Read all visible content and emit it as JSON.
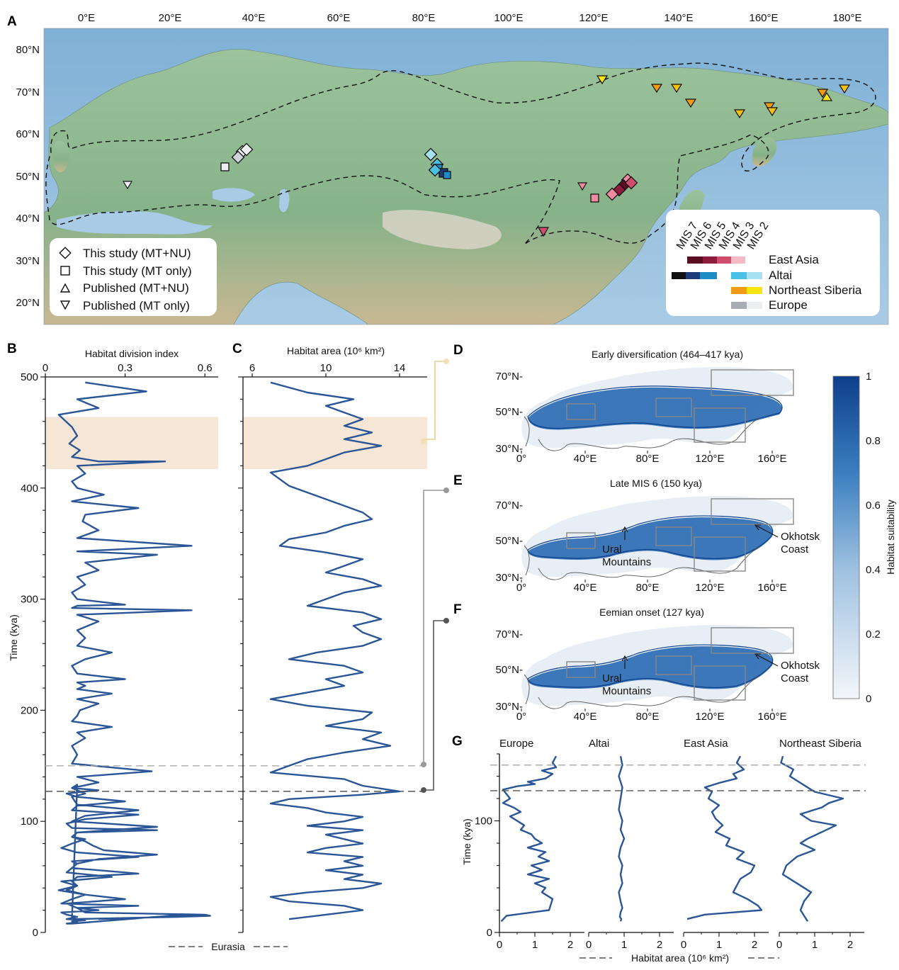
{
  "panels": {
    "A": "A",
    "B": "B",
    "C": "C",
    "D": "D",
    "E": "E",
    "F": "F",
    "G": "G"
  },
  "colors": {
    "curve": "#2a5596",
    "sea_light": "#b8d4ea",
    "land_green": "#8fb596",
    "band": "#f6e6d6",
    "band_connector": "#e8cf8e",
    "mis6_line": "#aaaaaa",
    "eemian_line": "#555555",
    "east_asia": [
      "#5a0e22",
      "#8c1d3c",
      "#cf4c6c",
      "#f08aa0",
      "#f6b9c6"
    ],
    "altai": [
      "#111111",
      "#1f3a78",
      "#1c8cc6",
      "#4cc0e4",
      "#a8e2f2"
    ],
    "ne_siberia": [
      "#f39c12",
      "#f7c20e",
      "#fce40e"
    ],
    "europe": [
      "#a9adb3",
      "#d0d4d8",
      "#eceef0"
    ]
  },
  "map_A": {
    "lon_ticks": [
      "0°E",
      "20°E",
      "40°E",
      "60°E",
      "80°E",
      "100°E",
      "120°E",
      "140°E",
      "160°E",
      "180°E"
    ],
    "lat_ticks": [
      "80°N",
      "70°N",
      "60°N",
      "50°N",
      "40°N",
      "30°N",
      "20°N"
    ],
    "legend_symbols": [
      {
        "shape": "diamond",
        "label": "This study (MT+NU)"
      },
      {
        "shape": "square",
        "label": "This study (MT only)"
      },
      {
        "shape": "triangle-up",
        "label": "Published (MT+NU)"
      },
      {
        "shape": "triangle-down",
        "label": "Published (MT only)"
      }
    ],
    "mis_labels": [
      "MIS 7",
      "MIS 6",
      "MIS 5",
      "MIS 4",
      "MIS 3",
      "MIS 2"
    ],
    "regions": [
      "East Asia",
      "Altai",
      "Northeast Siberia",
      "Europe"
    ]
  },
  "panel_D": {
    "title": "Early diversification (464–417 kya)"
  },
  "panel_E": {
    "title": "Late MIS 6 (150 kya)",
    "annotations": [
      "Ural\nMountains",
      "Okhotsk\nCoast"
    ]
  },
  "panel_F": {
    "title": "Eemian onset (127 kya)",
    "annotations": [
      "Ural\nMountains",
      "Okhotsk\nCoast"
    ]
  },
  "suit_maps": {
    "lat_ticks": [
      "70°N-",
      "50°N-",
      "30°N-"
    ],
    "lon_ticks": [
      "0°",
      "40°E",
      "80°E",
      "120°E",
      "160°E"
    ]
  },
  "colorbar": {
    "label": "Habitat suitability",
    "ticks": [
      "0",
      "0.2",
      "0.4",
      "0.6",
      "0.8",
      "1"
    ]
  },
  "chart_data": [
    {
      "panel": "B",
      "type": "line",
      "xlabel": "Habitat division index",
      "ylabel": "Time (kya)",
      "xlim": [
        0,
        0.65
      ],
      "xticks": [
        "0",
        "0.3",
        "0.6"
      ],
      "ylim": [
        0,
        500
      ],
      "yticks": [
        "0",
        "100",
        "200",
        "300",
        "400",
        "500"
      ],
      "highlight_band": [
        417,
        464
      ],
      "reference_lines": [
        150,
        127
      ],
      "x": [
        0.15,
        0.38,
        0.12,
        0.2,
        0.05,
        0.1,
        0.12,
        0.09,
        0.13,
        0.1,
        0.2,
        0.45,
        0.12,
        0.15,
        0.1,
        0.12,
        0.22,
        0.1,
        0.35,
        0.15,
        0.14,
        0.2,
        0.12,
        0.55,
        0.12,
        0.42,
        0.15,
        0.2,
        0.12,
        0.15,
        0.1,
        0.12,
        0.3,
        0.12,
        0.1,
        0.55,
        0.12,
        0.2,
        0.12,
        0.15,
        0.12,
        0.25,
        0.15,
        0.1,
        0.12,
        0.3,
        0.12,
        0.15,
        0.12,
        0.25,
        0.12,
        0.2,
        0.13,
        0.12,
        0.1,
        0.25,
        0.12,
        0.15,
        0.1,
        0.12,
        0.1,
        0.4,
        0.12,
        0.2,
        0.1,
        0.15,
        0.1,
        0.12,
        0.35,
        0.15,
        0.1,
        0.42,
        0.12,
        0.1,
        0.15,
        0.18,
        0.22,
        0.42,
        0.2,
        0.12,
        0.1,
        0.35,
        0.12,
        0.1,
        0.12,
        0.05,
        0.15,
        0.3,
        0.08,
        0.12,
        0.15,
        0.6,
        0.62,
        0.5,
        0.1,
        0.12,
        0.1,
        0.2,
        0.15,
        0.08,
        0.12,
        0.3,
        0.12,
        0.1,
        0.35,
        0.15,
        0.08,
        0.1,
        0.42,
        0.12,
        0.1,
        0.15,
        0.1,
        0.06,
        0.12,
        0.35,
        0.1,
        0.12,
        0.1,
        0.08,
        0.25,
        0.06,
        0.12,
        0.08,
        0.15,
        0.1,
        0.06,
        0.35,
        0.12,
        0.2,
        0.06,
        0.08,
        0.12,
        0.1,
        0.08,
        0.15,
        0.1,
        0.12,
        0.08,
        0.1,
        0.52,
        0.6,
        0.2
      ],
      "y": [
        495,
        487,
        480,
        472,
        466,
        455,
        447,
        440,
        434,
        428,
        424,
        424,
        420,
        413,
        406,
        400,
        394,
        388,
        382,
        376,
        370,
        362,
        355,
        348,
        343,
        340,
        333,
        326,
        320,
        313,
        306,
        300,
        295,
        294,
        292,
        290,
        286,
        280,
        272,
        265,
        258,
        252,
        246,
        240,
        233,
        228,
        225,
        222,
        219,
        215,
        210,
        206,
        200,
        195,
        190,
        185,
        180,
        175,
        168,
        160,
        152,
        145,
        140,
        135,
        130,
        125,
        122,
        115,
        110,
        105,
        100,
        95,
        90,
        86,
        82,
        78,
        74,
        70,
        66,
        62,
        58,
        53,
        50,
        46,
        42,
        38,
        34,
        30,
        26,
        22,
        18,
        16,
        15,
        14,
        12,
        133,
        130,
        128,
        127,
        125,
        122,
        118,
        114,
        110,
        106,
        102,
        98,
        94,
        92,
        90,
        86,
        84,
        80,
        76,
        72,
        68,
        64,
        62,
        58,
        54,
        50,
        46,
        42,
        38,
        34,
        30,
        26,
        24,
        22,
        20,
        18,
        16,
        14,
        13,
        12,
        11,
        10,
        9,
        8,
        8,
        16,
        15,
        12
      ],
      "series": []
    },
    {
      "panel": "C",
      "type": "line",
      "xlabel": "Habitat area (10⁶ km²)",
      "xlim": [
        5.5,
        15.5
      ],
      "xticks": [
        "6",
        "10",
        "14"
      ],
      "ylim": [
        0,
        500
      ],
      "highlight_band": [
        417,
        464
      ],
      "reference_lines": [
        150,
        127
      ],
      "x": [
        7,
        9,
        11.5,
        10,
        11,
        12,
        11,
        12.5,
        11,
        13,
        11,
        10,
        9,
        7,
        7.5,
        8,
        9,
        10,
        11,
        12,
        12.5,
        11,
        10,
        8,
        7.5,
        10,
        12,
        11,
        10,
        12,
        13,
        11,
        10,
        9,
        12,
        13,
        11.5,
        12,
        13,
        12,
        9.5,
        8,
        11,
        12,
        10,
        11,
        9,
        7,
        9,
        12.5,
        12,
        10,
        13,
        12,
        13.5,
        11,
        9,
        8,
        7,
        11,
        12,
        14,
        12,
        8,
        7,
        9,
        10,
        12,
        11,
        9,
        12,
        10,
        11,
        12,
        10,
        9,
        12,
        11,
        12,
        10,
        12,
        11,
        13,
        12,
        9,
        7,
        8,
        11,
        12,
        10,
        8
      ],
      "y": [
        495,
        486,
        480,
        474,
        468,
        462,
        456,
        450,
        444,
        438,
        432,
        426,
        420,
        414,
        408,
        402,
        396,
        390,
        384,
        378,
        372,
        366,
        360,
        354,
        348,
        342,
        336,
        330,
        324,
        318,
        312,
        306,
        300,
        294,
        288,
        282,
        276,
        270,
        264,
        258,
        252,
        246,
        240,
        234,
        228,
        222,
        216,
        210,
        204,
        198,
        192,
        186,
        180,
        174,
        168,
        162,
        156,
        150,
        144,
        138,
        132,
        127,
        124,
        120,
        116,
        112,
        108,
        104,
        100,
        96,
        92,
        88,
        84,
        80,
        76,
        72,
        68,
        64,
        60,
        56,
        52,
        48,
        44,
        40,
        36,
        32,
        28,
        24,
        20,
        16,
        12
      ]
    },
    {
      "panel": "G",
      "type": "line",
      "xlabel": "Habitat area (10⁶ km²)",
      "ylabel": "Time (kya)",
      "xlim": [
        0,
        2.4
      ],
      "xticks": [
        "0",
        "1",
        "2"
      ],
      "ylim": [
        0,
        160
      ],
      "yticks": [
        "0",
        "100"
      ],
      "reference_lines": [
        150,
        127
      ],
      "series": [
        {
          "name": "Europe",
          "x": [
            1.6,
            1.5,
            1.6,
            1.2,
            1.5,
            1.3,
            0.8,
            1,
            0.5,
            0.1,
            0.2,
            0.3,
            0.1,
            0.4,
            0.6,
            0.3,
            0.5,
            0.7,
            0.6,
            0.9,
            1,
            1.2,
            0.8,
            1.3,
            1.1,
            1.4,
            0.9,
            1.2,
            0.8,
            1.4,
            1.0,
            1.3,
            1.2,
            1.5,
            1.4,
            0.2,
            0.05
          ],
          "y": [
            158,
            152,
            148,
            145,
            142,
            138,
            135,
            133,
            131,
            128,
            124,
            120,
            116,
            112,
            108,
            104,
            100,
            96,
            92,
            88,
            84,
            80,
            76,
            72,
            68,
            64,
            60,
            56,
            52,
            48,
            44,
            40,
            36,
            30,
            20,
            15,
            10
          ]
        },
        {
          "name": "Altai",
          "x": [
            0.9,
            0.95,
            0.85,
            0.95,
            0.9,
            0.85,
            0.95,
            0.9,
            1,
            0.9,
            0.85,
            0.95,
            0.9,
            0.95,
            0.85,
            0.9,
            0.95,
            0.9,
            0.88,
            0.92,
            0.9
          ],
          "y": [
            158,
            150,
            140,
            130,
            120,
            110,
            100,
            92,
            84,
            76,
            68,
            60,
            52,
            44,
            36,
            28,
            22,
            18,
            14,
            12,
            10
          ]
        },
        {
          "name": "East Asia",
          "x": [
            1.6,
            1.5,
            1.7,
            1.4,
            1.5,
            1.0,
            0.6,
            0.8,
            0.7,
            1.0,
            0.8,
            0.9,
            1.1,
            0.9,
            1.3,
            1.2,
            1.7,
            1.5,
            2.0,
            1.9,
            1.6,
            1.5,
            1.4,
            1.8,
            2.1,
            2.2,
            0.6,
            0.1
          ],
          "y": [
            158,
            152,
            146,
            142,
            138,
            134,
            130,
            126,
            120,
            114,
            108,
            102,
            96,
            90,
            84,
            78,
            72,
            66,
            60,
            54,
            48,
            42,
            36,
            30,
            24,
            20,
            16,
            12
          ]
        },
        {
          "name": "Northeast Siberia",
          "x": [
            0.1,
            0.05,
            0.4,
            0.3,
            0.6,
            0.8,
            1.0,
            1.8,
            1.4,
            1.2,
            0.6,
            0.9,
            1.6,
            1.2,
            0.8,
            0.6,
            1.0,
            0.5,
            0.2,
            0.1,
            0.5,
            0.9,
            0.7,
            0.6,
            0.8
          ],
          "y": [
            158,
            152,
            146,
            140,
            134,
            130,
            126,
            120,
            116,
            112,
            106,
            100,
            96,
            90,
            84,
            80,
            74,
            68,
            60,
            52,
            44,
            36,
            28,
            20,
            10
          ]
        }
      ]
    }
  ],
  "bottom_labels": {
    "eurasia": "Eurasia",
    "habitat_area": "Habitat area (10⁶ km²)"
  }
}
